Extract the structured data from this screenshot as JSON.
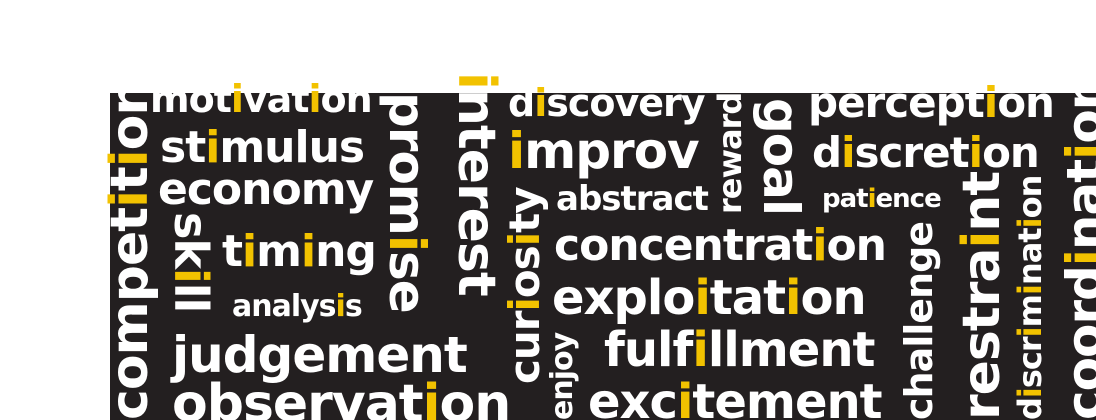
{
  "colors": {
    "background": "#231f20",
    "word": "#ffffff",
    "highlight": "#f2c200",
    "page": "#ffffff"
  },
  "words": [
    "motivation",
    "stimulus",
    "economy",
    "timing",
    "analysis",
    "judgement",
    "observation",
    "competition",
    "skill",
    "promise",
    "interest",
    "curiosity",
    "enjoy",
    "discovery",
    "improv",
    "abstract",
    "concentration",
    "exploitation",
    "fulfillment",
    "excitement",
    "reward",
    "goal",
    "perception",
    "discretion",
    "patience",
    "challenge",
    "restraint",
    "discrimination",
    "coordination"
  ]
}
